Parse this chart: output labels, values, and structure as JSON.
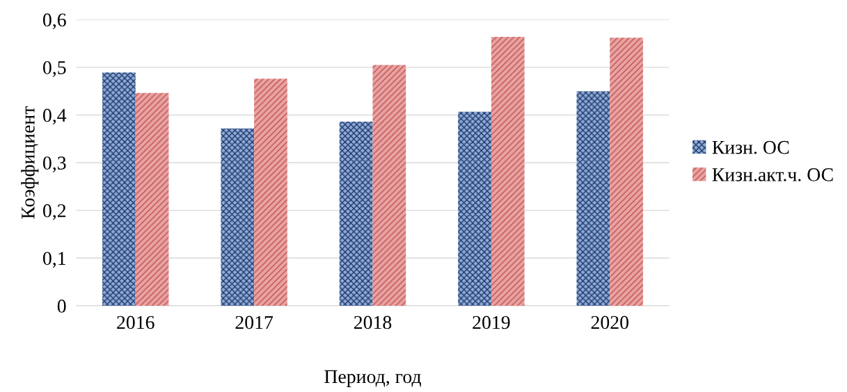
{
  "chart_data": {
    "type": "bar",
    "xlabel": "Период, год",
    "ylabel": "Коэффициент",
    "categories": [
      "2016",
      "2017",
      "2018",
      "2019",
      "2020"
    ],
    "series": [
      {
        "name": "Кизн. ОС",
        "color": "#8eaadb",
        "values": [
          0.489,
          0.372,
          0.386,
          0.407,
          0.45
        ]
      },
      {
        "name": "Кизн.акт.ч. ОС",
        "color": "#e8a3a3",
        "values": [
          0.446,
          0.476,
          0.505,
          0.564,
          0.562
        ]
      }
    ],
    "ylim": [
      0,
      0.6
    ],
    "yticks": [
      {
        "value": 0,
        "label": "0"
      },
      {
        "value": 0.1,
        "label": "0,1"
      },
      {
        "value": 0.2,
        "label": "0,2"
      },
      {
        "value": 0.3,
        "label": "0,3"
      },
      {
        "value": 0.4,
        "label": "0,4"
      },
      {
        "value": 0.5,
        "label": "0,5"
      },
      {
        "value": 0.6,
        "label": "0,6"
      }
    ],
    "grid": "y",
    "legend": "right"
  }
}
